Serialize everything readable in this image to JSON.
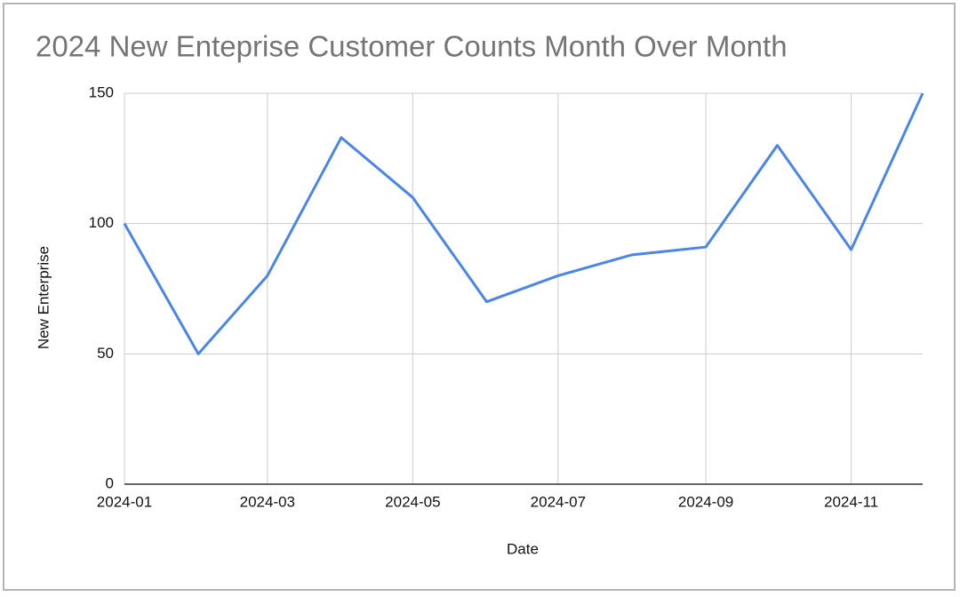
{
  "chart_data": {
    "type": "line",
    "title": "2024 New Enteprise Customer Counts Month Over Month",
    "x_label": "Date",
    "y_label": "New Enterprise",
    "x": [
      "2024-01",
      "2024-02",
      "2024-03",
      "2024-04",
      "2024-05",
      "2024-06",
      "2024-07",
      "2024-08",
      "2024-09",
      "2024-10",
      "2024-11",
      "2024-12"
    ],
    "series": [
      {
        "name": "New Enterprise",
        "color": "#4a86e8",
        "values": [
          100,
          50,
          80,
          133,
          110,
          70,
          80,
          88,
          91,
          130,
          90,
          150
        ]
      }
    ],
    "xlim": [
      "2024-01",
      "2024-12"
    ],
    "xticks": [
      "2024-01",
      "2024-03",
      "2024-05",
      "2024-07",
      "2024-09",
      "2024-11"
    ],
    "ylim": [
      0,
      150
    ],
    "yticks": [
      0,
      50,
      100,
      150
    ],
    "grid": true
  }
}
